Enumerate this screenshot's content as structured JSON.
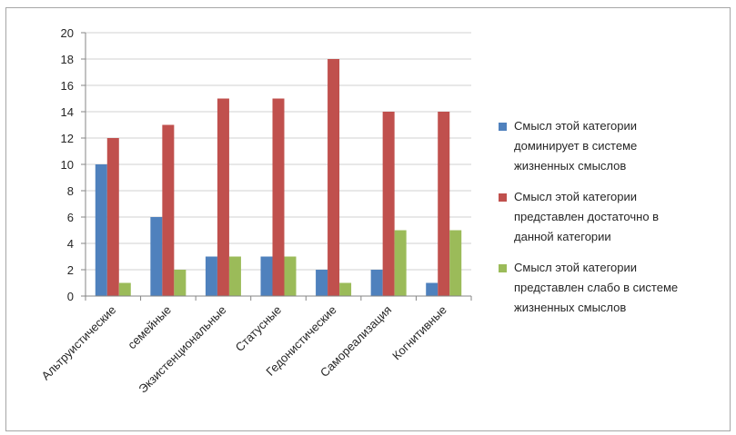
{
  "chart_data": {
    "type": "bar",
    "categories": [
      "Альтруистические",
      "семейные",
      "Экзистенциональные",
      "Статусные",
      "Гедонистические",
      "Самореализация",
      "Когнитивные"
    ],
    "series": [
      {
        "name": "Смысл этой категории доминирует в системе жизненных смыслов",
        "name_lines": [
          "Смысл этой категории",
          "доминирует в системе",
          "жизненных смыслов"
        ],
        "color": "#4f81bd",
        "values": [
          10,
          6,
          3,
          3,
          2,
          2,
          1
        ]
      },
      {
        "name": "Смысл этой категории представлен достаточно в данной категории",
        "name_lines": [
          "Смысл этой категории",
          "представлен достаточно в",
          "данной категории"
        ],
        "color": "#c0504d",
        "values": [
          12,
          13,
          15,
          15,
          18,
          14,
          14
        ]
      },
      {
        "name": "Смысл этой категории представлен слабо в системе жизненных смыслов",
        "name_lines": [
          "Смысл этой категории",
          "представлен слабо в системе",
          "жизненных смыслов"
        ],
        "color": "#9bbb59",
        "values": [
          1,
          2,
          3,
          3,
          1,
          5,
          5
        ]
      }
    ],
    "ylim": [
      0,
      20
    ],
    "yticks": [
      "0",
      "2",
      "4",
      "6",
      "8",
      "10",
      "12",
      "14",
      "16",
      "18",
      "20"
    ],
    "grid": true,
    "legend_position": "right"
  }
}
